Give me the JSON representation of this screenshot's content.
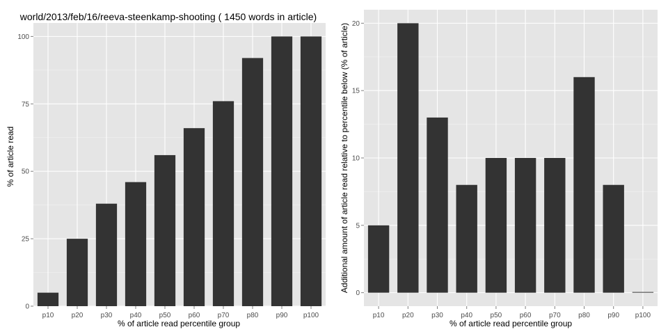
{
  "chart_data": [
    {
      "type": "bar",
      "title": "world/2013/feb/16/reeva-steenkamp-shooting ( 1450 words in article)",
      "xlabel": "% of article read percentile group",
      "ylabel": "% of article read",
      "categories": [
        "p10",
        "p20",
        "p30",
        "p40",
        "p50",
        "p60",
        "p70",
        "p80",
        "p90",
        "p100"
      ],
      "values": [
        5,
        25,
        38,
        46,
        56,
        66,
        76,
        92,
        100,
        100
      ],
      "ylim": [
        0,
        105
      ],
      "yticks": [
        0,
        25,
        50,
        75,
        100
      ],
      "ytick_labels": [
        "0",
        "25",
        "50",
        "75",
        "100"
      ],
      "bar_color": "#333333",
      "panel_color": "#e5e5e5",
      "grid": true
    },
    {
      "type": "bar",
      "title": "",
      "xlabel": "% of article read percentile group",
      "ylabel": "Additional amount of article read relative to percentile below (% of article)",
      "categories": [
        "p10",
        "p20",
        "p30",
        "p40",
        "p50",
        "p60",
        "p70",
        "p80",
        "p90",
        "p100"
      ],
      "values": [
        5,
        20,
        13,
        8,
        10,
        10,
        10,
        16,
        8,
        0
      ],
      "ylim": [
        -1,
        21
      ],
      "yticks": [
        0,
        5,
        10,
        15,
        20
      ],
      "ytick_labels": [
        "0",
        "5",
        "10",
        "15",
        "20"
      ],
      "bar_color": "#333333",
      "panel_color": "#e5e5e5",
      "grid": true
    }
  ]
}
